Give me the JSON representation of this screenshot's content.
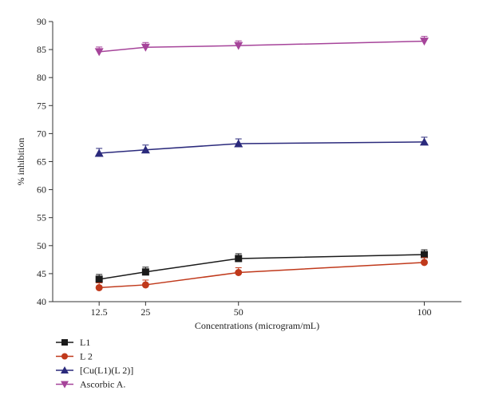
{
  "chart_data": {
    "type": "line",
    "title": "",
    "xlabel": "Concentrations (microgram/mL)",
    "ylabel": "% inhibition",
    "x": [
      12.5,
      25,
      50,
      100
    ],
    "x_tick_labels": [
      "12.5",
      "25",
      "50",
      "100"
    ],
    "xlim": [
      0,
      110
    ],
    "ylim": [
      40,
      90
    ],
    "y_ticks": [
      40,
      45,
      50,
      55,
      60,
      65,
      70,
      75,
      80,
      85,
      90
    ],
    "grid": false,
    "legend_position": "bottom-left",
    "series": [
      {
        "name": "L1",
        "values": [
          44.0,
          45.3,
          47.7,
          48.4
        ],
        "color": "#1a1a1a",
        "marker": "square"
      },
      {
        "name": "L 2",
        "values": [
          42.5,
          43.0,
          45.2,
          47.0
        ],
        "color": "#c0391b",
        "marker": "circle"
      },
      {
        "name": "[Cu(L1)(L 2)]",
        "values": [
          66.5,
          67.1,
          68.2,
          68.5
        ],
        "color": "#2b2a7c",
        "marker": "triangle-up"
      },
      {
        "name": "Ascorbic A.",
        "values": [
          84.6,
          85.4,
          85.7,
          86.5
        ],
        "color": "#a6449a",
        "marker": "triangle-down"
      }
    ]
  }
}
